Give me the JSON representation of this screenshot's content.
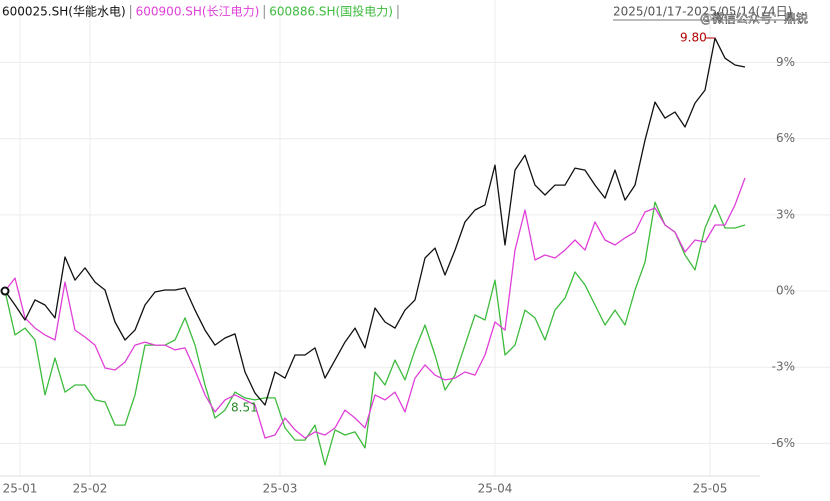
{
  "chart_data": {
    "type": "line",
    "date_range": "2025/01/17-2025/05/14(74日)",
    "watermark": "@微信公众号：鼎锐",
    "annotations": [
      "9.80",
      "8.51"
    ],
    "x": [
      0,
      1,
      2,
      3,
      4,
      5,
      6,
      7,
      8,
      9,
      10,
      11,
      12,
      13,
      14,
      15,
      16,
      17,
      18,
      19,
      20,
      21,
      22,
      23,
      24,
      25,
      26,
      27,
      28,
      29,
      30,
      31,
      32,
      33,
      34,
      35,
      36,
      37,
      38,
      39,
      40,
      41,
      42,
      43,
      44,
      45,
      46,
      47,
      48,
      49,
      50,
      51,
      52,
      53,
      54,
      55,
      56,
      57,
      58,
      59,
      60,
      61,
      62,
      63,
      64,
      65,
      66,
      67,
      68,
      69,
      70,
      71,
      72,
      73,
      74
    ],
    "series": [
      {
        "name": "600025.SH(华能水电)",
        "color": "#111111",
        "values": [
          0,
          -0.55,
          -1.14,
          -0.35,
          -0.55,
          -1.06,
          1.34,
          0.43,
          0.91,
          0.35,
          0.04,
          -1.22,
          -1.93,
          -1.54,
          -0.55,
          -0.04,
          0.04,
          0.04,
          0.12,
          -0.75,
          -1.54,
          -2.13,
          -1.85,
          -1.69,
          -3.19,
          -4.02,
          -4.49,
          -3.19,
          -3.43,
          -2.52,
          -2.52,
          -2.24,
          -3.43,
          -2.72,
          -2.01,
          -1.46,
          -2.24,
          -0.67,
          -1.22,
          -1.46,
          -0.75,
          -0.35,
          1.3,
          1.69,
          0.63,
          1.61,
          2.72,
          3.19,
          3.39,
          4.96,
          1.81,
          4.76,
          5.35,
          4.17,
          3.78,
          4.17,
          4.17,
          4.84,
          4.76,
          4.17,
          3.66,
          4.76,
          3.58,
          4.17,
          5.94,
          7.44,
          6.81,
          7.05,
          6.46,
          7.4,
          7.91,
          9.96,
          9.17,
          8.9,
          8.82
        ]
      },
      {
        "name": "600900.SH(长江电力)",
        "color": "#e040d8",
        "values": [
          0,
          0.51,
          -1.06,
          -1.46,
          -1.73,
          -1.93,
          0.35,
          -1.54,
          -1.81,
          -2.13,
          -3.03,
          -3.11,
          -2.8,
          -2.13,
          -2.01,
          -2.13,
          -2.13,
          -2.32,
          -2.24,
          -3.11,
          -4.09,
          -4.76,
          -4.29,
          -4.09,
          -4.29,
          -4.49,
          -5.79,
          -5.67,
          -5.0,
          -5.47,
          -5.79,
          -5.55,
          -5.67,
          -5.39,
          -4.69,
          -5.0,
          -5.39,
          -4.09,
          -4.29,
          -3.98,
          -4.76,
          -3.43,
          -2.91,
          -3.31,
          -3.5,
          -3.43,
          -3.19,
          -3.31,
          -2.52,
          -1.22,
          -1.54,
          1.61,
          3.19,
          1.22,
          1.42,
          1.3,
          1.61,
          2.01,
          1.61,
          2.72,
          2.01,
          1.81,
          2.09,
          2.32,
          3.11,
          3.27,
          2.6,
          2.32,
          1.54,
          2.01,
          1.93,
          2.6,
          2.6,
          3.39,
          4.45
        ]
      },
      {
        "name": "600886.SH(国投电力)",
        "color": "#3dbb3d",
        "values": [
          0,
          -1.73,
          -1.46,
          -1.93,
          -4.09,
          -2.64,
          -3.98,
          -3.7,
          -3.7,
          -4.29,
          -4.37,
          -5.28,
          -5.28,
          -4.09,
          -2.13,
          -2.13,
          -2.13,
          -1.93,
          -1.06,
          -2.13,
          -3.7,
          -5.0,
          -4.69,
          -3.98,
          -4.21,
          -4.29,
          -4.21,
          -4.21,
          -5.39,
          -5.87,
          -5.87,
          -5.28,
          -6.85,
          -5.47,
          -5.67,
          -5.55,
          -6.18,
          -3.19,
          -3.7,
          -2.72,
          -3.5,
          -2.32,
          -1.34,
          -2.52,
          -3.9,
          -3.31,
          -2.13,
          -0.94,
          -1.14,
          0.43,
          -2.52,
          -2.13,
          -0.75,
          -1.06,
          -1.93,
          -0.75,
          -0.28,
          0.75,
          0.24,
          -0.55,
          -1.34,
          -0.75,
          -1.34,
          0.04,
          1.14,
          3.5,
          2.6,
          2.32,
          1.42,
          0.83,
          2.48,
          3.39,
          2.48,
          2.48,
          2.6
        ]
      }
    ],
    "xlim": [
      -0.5,
      82.5
    ],
    "xticks": [
      {
        "value": 1.5,
        "label": "25-01"
      },
      {
        "value": 8.5,
        "label": "25-02"
      },
      {
        "value": 27.5,
        "label": "25-03"
      },
      {
        "value": 49,
        "label": "25-04"
      },
      {
        "value": 70.5,
        "label": "25-05"
      }
    ],
    "ylim": [
      -8.23,
      11.46
    ],
    "yticks": [
      {
        "value": 9,
        "label": "9%"
      },
      {
        "value": 6,
        "label": "6%"
      },
      {
        "value": 3,
        "label": "3%"
      },
      {
        "value": 0,
        "label": "0%"
      },
      {
        "value": -3,
        "label": "-3%"
      },
      {
        "value": -6,
        "label": "-6%"
      }
    ],
    "grid": true
  }
}
